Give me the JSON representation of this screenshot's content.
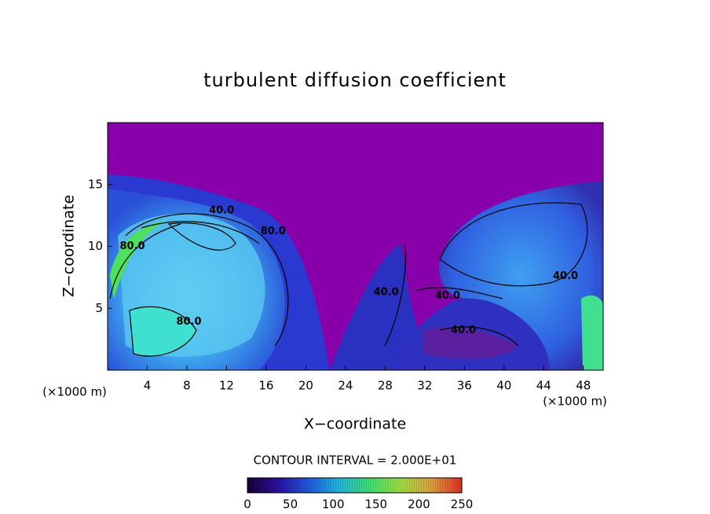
{
  "chart_data": {
    "type": "contour",
    "title": "turbulent diffusion coefficient",
    "x_label": "X−coordinate",
    "y_label": "Z−coordinate",
    "x_unit_left": "(×1000 m)",
    "x_unit_right": "(×1000 m)",
    "xlim": [
      0,
      50
    ],
    "xticks": [
      4,
      8,
      12,
      16,
      20,
      24,
      28,
      32,
      36,
      40,
      44,
      48
    ],
    "ylim": [
      0,
      20
    ],
    "yticks": [
      5,
      10,
      15
    ],
    "contour_interval_label": "CONTOUR INTERVAL = 2.000E+01",
    "contour_labels": [
      {
        "text": "40.0",
        "x": 11.5,
        "y": 12.9
      },
      {
        "text": "80.0",
        "x": 16.7,
        "y": 11.2
      },
      {
        "text": "80.0",
        "x": 2.5,
        "y": 10.0
      },
      {
        "text": "80.0",
        "x": 8.2,
        "y": 3.9
      },
      {
        "text": "40.0",
        "x": 28.1,
        "y": 6.3
      },
      {
        "text": "40.0",
        "x": 34.3,
        "y": 6.0
      },
      {
        "text": "40.0",
        "x": 35.9,
        "y": 3.2
      },
      {
        "text": "40.0",
        "x": 46.2,
        "y": 7.6
      }
    ],
    "colorbar": {
      "lim": [
        0,
        250
      ],
      "ticks": [
        0,
        50,
        100,
        150,
        200,
        250
      ],
      "colormap": [
        "#1a0033",
        "#2a10a0",
        "#1e5ae0",
        "#20b8e0",
        "#40e070",
        "#a0e040",
        "#e0a040",
        "#e03020"
      ]
    }
  }
}
